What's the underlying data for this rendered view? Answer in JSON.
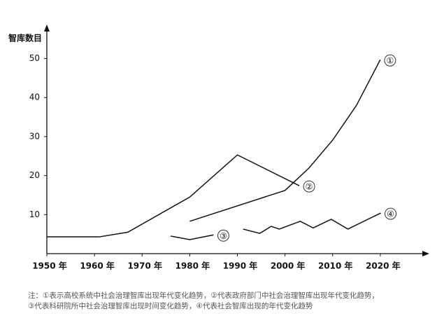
{
  "chart_data": {
    "type": "line",
    "ylabel": "智库数目",
    "xlim": [
      1950,
      2030
    ],
    "ylim": [
      0,
      58
    ],
    "xticks": [
      {
        "value": 1950,
        "label": "1950 年"
      },
      {
        "value": 1960,
        "label": "1960 年"
      },
      {
        "value": 1970,
        "label": "1970 年"
      },
      {
        "value": 1980,
        "label": "1980 年"
      },
      {
        "value": 1990,
        "label": "1990 年"
      },
      {
        "value": 2000,
        "label": "2000 年"
      },
      {
        "value": 2010,
        "label": "2010 年"
      },
      {
        "value": 2020,
        "label": "2020 年"
      }
    ],
    "yticks": [
      10,
      20,
      30,
      40,
      50
    ],
    "series": [
      {
        "name": "①",
        "color": "#111111",
        "x": [
          1980,
          2000,
          2005,
          2010,
          2015,
          2020
        ],
        "values": [
          8.3,
          16.2,
          21.9,
          29.1,
          38,
          49.7
        ]
      },
      {
        "name": "②",
        "color": "#111111",
        "x": [
          1950,
          1961,
          1967,
          1980,
          1990,
          2003
        ],
        "values": [
          4.3,
          4.3,
          5.5,
          14.5,
          25.3,
          17.4
        ]
      },
      {
        "name": "③",
        "color": "#111111",
        "x": [
          1976,
          1980,
          1985
        ],
        "values": [
          4.5,
          3.6,
          4.8
        ]
      },
      {
        "name": "④",
        "color": "#111111",
        "x": [
          1991.2,
          1994.7,
          1997.1,
          1998.8,
          2003.2,
          2005.9,
          2009.7,
          2013.2,
          2020.1
        ],
        "values": [
          6.3,
          5.2,
          7.0,
          6.3,
          8.3,
          6.6,
          8.8,
          6.3,
          10.4
        ]
      }
    ],
    "notes": [
      "注：①表示高校系统中社会治理智库出现年代变化趋势，②代表政府部门中社会治理智库出现年代变化趋势，",
      "③代表科研院所中社会治理智库出现时间变化趋势，④代表社会智库出现的年代变化趋势"
    ]
  }
}
